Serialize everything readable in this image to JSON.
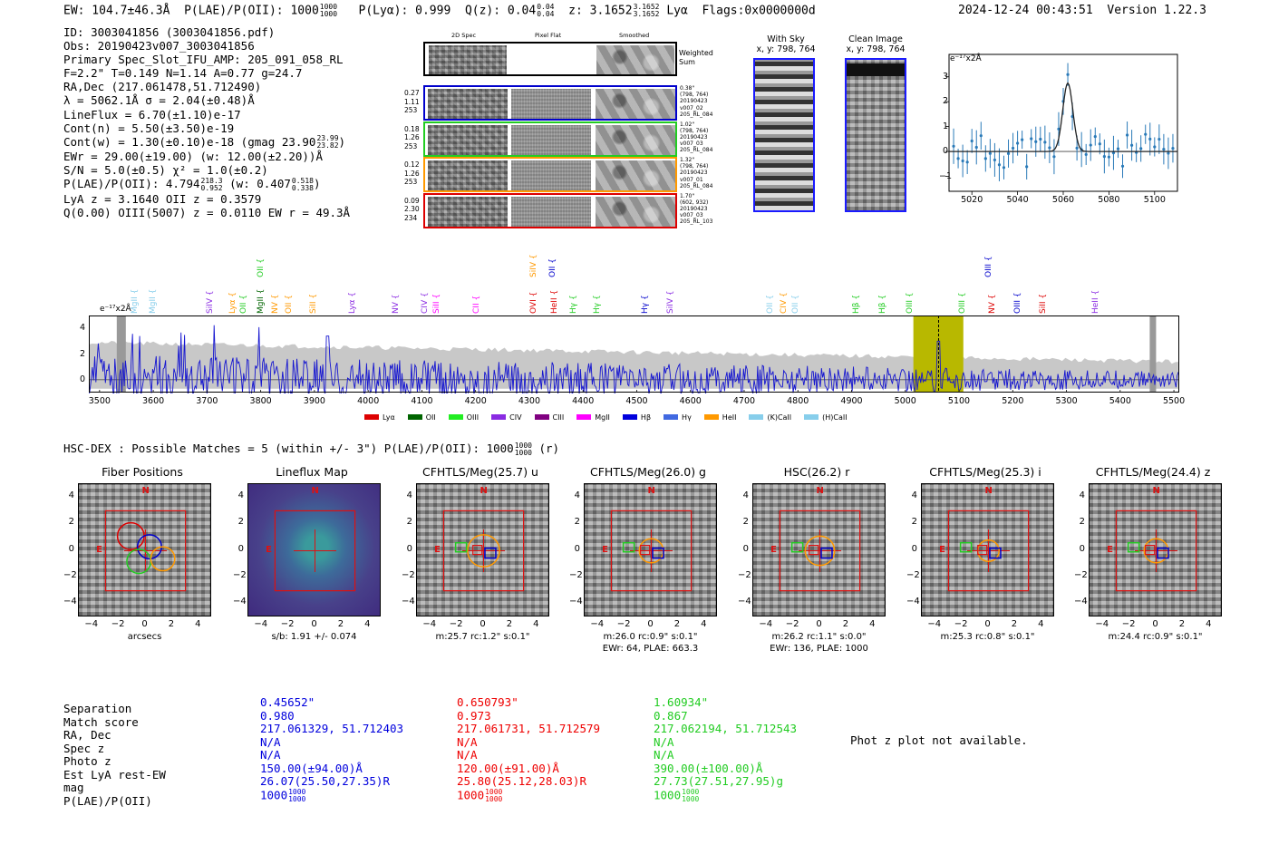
{
  "header": {
    "ew": "EW: 104.7±46.3Å",
    "plae_label": "P(LAE)/P(OII): 1000",
    "plae_hi": "1000",
    "plae_lo": "1000",
    "plya": "P(Lyα): 0.999",
    "qz_label": "Q(z): 0.04",
    "qz_hi": "0.04",
    "qz_lo": "0.04",
    "z_label": "z: 3.1652",
    "z_hi": "3.1652",
    "z_lo": "3.1652",
    "z_line": "Lyα",
    "flags": "Flags:0x0000000d",
    "timestamp": "2024-12-24 00:43:51",
    "version": "Version 1.22.3"
  },
  "info": {
    "id": "ID: 3003041856 (3003041856.pdf)",
    "obs": "Obs: 20190423v007_3003041856",
    "primary": "Primary Spec_Slot_IFU_AMP: 205_091_058_RL",
    "fiber": "F=2.2\"  T=0.149  N=1.14  A=0.77  g=24.7",
    "radec": "RA,Dec (217.061478,51.712490)",
    "lambda": "λ = 5062.1Å  σ = 2.04(±0.48)Å",
    "lineflux": "LineFlux = 6.70(±1.10)e-17",
    "contn": "Cont(n) = 5.50(±3.50)e-19",
    "contw": "Cont(w) = 1.30(±0.10)e-18 (gmag 23.90",
    "contw_hi": "23.99",
    "contw_lo": "23.82",
    "ewr": "EWr = 29.00(±19.00) (w: 12.00(±2.20))Å",
    "sn": "S/N = 5.0(±0.5)  χ² = 1.0(±0.2)",
    "plae": "P(LAE)/P(OII): 4.794",
    "plae_hi": "218.3",
    "plae_lo": "0.952",
    "plae_w": "(w: 0.407",
    "plae_w_hi": "0.518",
    "plae_w_lo": "0.338",
    "lya": "LyA z = 3.1640  OII z = 0.3579",
    "q": "Q(0.00) OIII(5007) z = 0.0110  EW r = 49.3Å"
  },
  "cutouts": {
    "col_2d": "2D Spec",
    "col_flat": "Pixel Flat",
    "col_smooth": "Smoothed",
    "weighted": "Weighted",
    "sum": "Sum",
    "rows": [
      {
        "left": [
          "0.27",
          "1.11",
          "253"
        ],
        "right": [
          "0.38\"",
          "(798, 764)",
          "20190423",
          "v007_02",
          "205_RL_084"
        ],
        "color": "#0000cc"
      },
      {
        "left": [
          "0.18",
          "1.26",
          "253"
        ],
        "right": [
          "1.02\"",
          "(798, 764)",
          "20190423",
          "v007_03",
          "205_RL_084"
        ],
        "color": "#22cc22"
      },
      {
        "left": [
          "0.12",
          "1.26",
          "253"
        ],
        "right": [
          "1.32\"",
          "(798, 764)",
          "20190423",
          "v007_01",
          "205_RL_084"
        ],
        "color": "#ff9900"
      },
      {
        "left": [
          "0.09",
          "2.30",
          "234"
        ],
        "right": [
          "1.70\"",
          "(602, 932)",
          "20190423",
          "v007_03",
          "205_RL_103"
        ],
        "color": "#dd0000"
      }
    ],
    "with_sky": "With Sky",
    "with_sky_xy": "x, y: 798, 764",
    "clean": "Clean Image",
    "clean_xy": "x, y: 798, 764"
  },
  "zoom_plot": {
    "unit": "e⁻¹⁷x2Å",
    "yticks": [
      "3",
      "2",
      "1",
      "0",
      "−1"
    ],
    "xticks": [
      "5020",
      "5040",
      "5060",
      "5080",
      "5100"
    ]
  },
  "full_spec": {
    "unit": "e⁻¹⁷x2Å",
    "yticks": [
      "4",
      "2",
      "0"
    ],
    "xticks": [
      "3500",
      "3600",
      "3700",
      "3800",
      "3900",
      "4000",
      "4100",
      "4200",
      "4300",
      "4400",
      "4500",
      "4600",
      "4700",
      "4800",
      "4900",
      "5000",
      "5100",
      "5200",
      "5300",
      "5400",
      "5500"
    ],
    "lines_upper": [
      {
        "label": "OII",
        "color": "#22cc22"
      },
      {
        "label": "SiIV",
        "color": "#ff9900"
      },
      {
        "label": "OII",
        "color": "#0000cc"
      },
      {
        "label": "OIII",
        "color": "#0000cc"
      }
    ],
    "lines_lower": [
      {
        "label": "MgII",
        "color": "#87ceeb"
      },
      {
        "label": "MgII",
        "color": "#87ceeb"
      },
      {
        "label": "SiIV",
        "color": "#8a2be2"
      },
      {
        "label": "Lyα",
        "color": "#ff9900"
      },
      {
        "label": "OII",
        "color": "#22cc22"
      },
      {
        "label": "MgII",
        "color": "#006400"
      },
      {
        "label": "NV",
        "color": "#ff9900"
      },
      {
        "label": "OII",
        "color": "#ff9900"
      },
      {
        "label": "SiII",
        "color": "#ff9900"
      },
      {
        "label": "Lyα",
        "color": "#8a2be2"
      },
      {
        "label": "NV",
        "color": "#8a2be2"
      },
      {
        "label": "CIV",
        "color": "#8a2be2"
      },
      {
        "label": "SiII",
        "color": "#ff00ff"
      },
      {
        "label": "CII",
        "color": "#ff00ff"
      },
      {
        "label": "OVI",
        "color": "#dd0000"
      },
      {
        "label": "HeII",
        "color": "#dd0000"
      },
      {
        "label": "Hγ",
        "color": "#22cc22"
      },
      {
        "label": "Hγ",
        "color": "#22cc22"
      },
      {
        "label": "Hγ",
        "color": "#0000cc"
      },
      {
        "label": "SiIV",
        "color": "#8a2be2"
      },
      {
        "label": "OII",
        "color": "#87ceeb"
      },
      {
        "label": "CIV",
        "color": "#ff9900"
      },
      {
        "label": "OII",
        "color": "#87ceeb"
      },
      {
        "label": "Hβ",
        "color": "#22cc22"
      },
      {
        "label": "Hβ",
        "color": "#22cc22"
      },
      {
        "label": "OIII",
        "color": "#22cc22"
      },
      {
        "label": "OIII",
        "color": "#22cc22"
      },
      {
        "label": "NV",
        "color": "#dd0000"
      },
      {
        "label": "OIII",
        "color": "#0000cc"
      },
      {
        "label": "SiII",
        "color": "#dd0000"
      },
      {
        "label": "HeII",
        "color": "#8a2be2"
      }
    ],
    "legend": [
      {
        "label": "Lyα",
        "color": "#dd0000"
      },
      {
        "label": "OII",
        "color": "#006400"
      },
      {
        "label": "OIII",
        "color": "#22ee22"
      },
      {
        "label": "CIV",
        "color": "#8a2be2"
      },
      {
        "label": "CIII",
        "color": "#800080"
      },
      {
        "label": "MgII",
        "color": "#ff00ff"
      },
      {
        "label": "Hβ",
        "color": "#0000dd"
      },
      {
        "label": "Hγ",
        "color": "#4169e1"
      },
      {
        "label": "HeII",
        "color": "#ff9900"
      },
      {
        "label": "(K)CaII",
        "color": "#87ceeb"
      },
      {
        "label": "(H)CaII",
        "color": "#87ceeb"
      }
    ]
  },
  "hsc": {
    "title": "HSC-DEX : Possible Matches = 5 (within +/- 3\")  P(LAE)/P(OII): 1000",
    "plae_hi": "1000",
    "plae_lo": "1000",
    "suffix": "(r)",
    "panels": [
      {
        "title": "Fiber Positions",
        "cap1": "arcsecs",
        "cap2": ""
      },
      {
        "title": "Lineflux Map",
        "cap1": "s/b: 1.91 +/- 0.074",
        "cap2": ""
      },
      {
        "title": "CFHTLS/Meg(25.7) u",
        "cap1": "m:25.7 rc:1.2\"  s:0.1\"",
        "cap2": ""
      },
      {
        "title": "CFHTLS/Meg(26.0) g",
        "cap1": "m:26.0 rc:0.9\"  s:0.1\"",
        "cap2": "EWr: 64, PLAE: 663.3"
      },
      {
        "title": "HSC(26.2) r",
        "cap1": "m:26.2 rc:1.1\"  s:0.0\"",
        "cap2": "EWr: 136, PLAE: 1000"
      },
      {
        "title": "CFHTLS/Meg(25.3) i",
        "cap1": "m:25.3 rc:0.8\"  s:0.1\"",
        "cap2": ""
      },
      {
        "title": "CFHTLS/Meg(24.4) z",
        "cap1": "m:24.4 rc:0.9\"  s:0.1\"",
        "cap2": ""
      }
    ],
    "axis_y": [
      "4",
      "2",
      "0",
      "−2",
      "−4"
    ],
    "axis_x": [
      "−4",
      "−2",
      "0",
      "2",
      "4"
    ],
    "north": "N",
    "east": "E"
  },
  "matches": {
    "labels": [
      "Separation",
      "Match score",
      "RA, Dec",
      "Spec z",
      "Photo z",
      "Est LyA rest-EW",
      "mag",
      "P(LAE)/P(OII)"
    ],
    "columns": [
      {
        "color": "#0000dd",
        "values": [
          "0.45652\"",
          "0.980",
          "217.061329, 51.712403",
          "N/A",
          "N/A",
          "150.00(±94.00)Å",
          "26.07(25.50,27.35)R",
          "1000"
        ],
        "frac_hi": "1000",
        "frac_lo": "1000"
      },
      {
        "color": "#ee0000",
        "values": [
          "0.650793\"",
          "0.973",
          "217.061731, 51.712579",
          "N/A",
          "N/A",
          "120.00(±91.00)Å",
          "25.80(25.12,28.03)R",
          "1000"
        ],
        "frac_hi": "1000",
        "frac_lo": "1000"
      },
      {
        "color": "#22cc22",
        "values": [
          "1.60934\"",
          "0.867",
          "217.062194, 51.712543",
          "N/A",
          "N/A",
          "390.00(±100.00)Å",
          "27.73(27.51,27.95)g",
          "1000"
        ],
        "frac_hi": "1000",
        "frac_lo": "1000"
      }
    ],
    "photz_msg": "Phot z plot not available."
  }
}
